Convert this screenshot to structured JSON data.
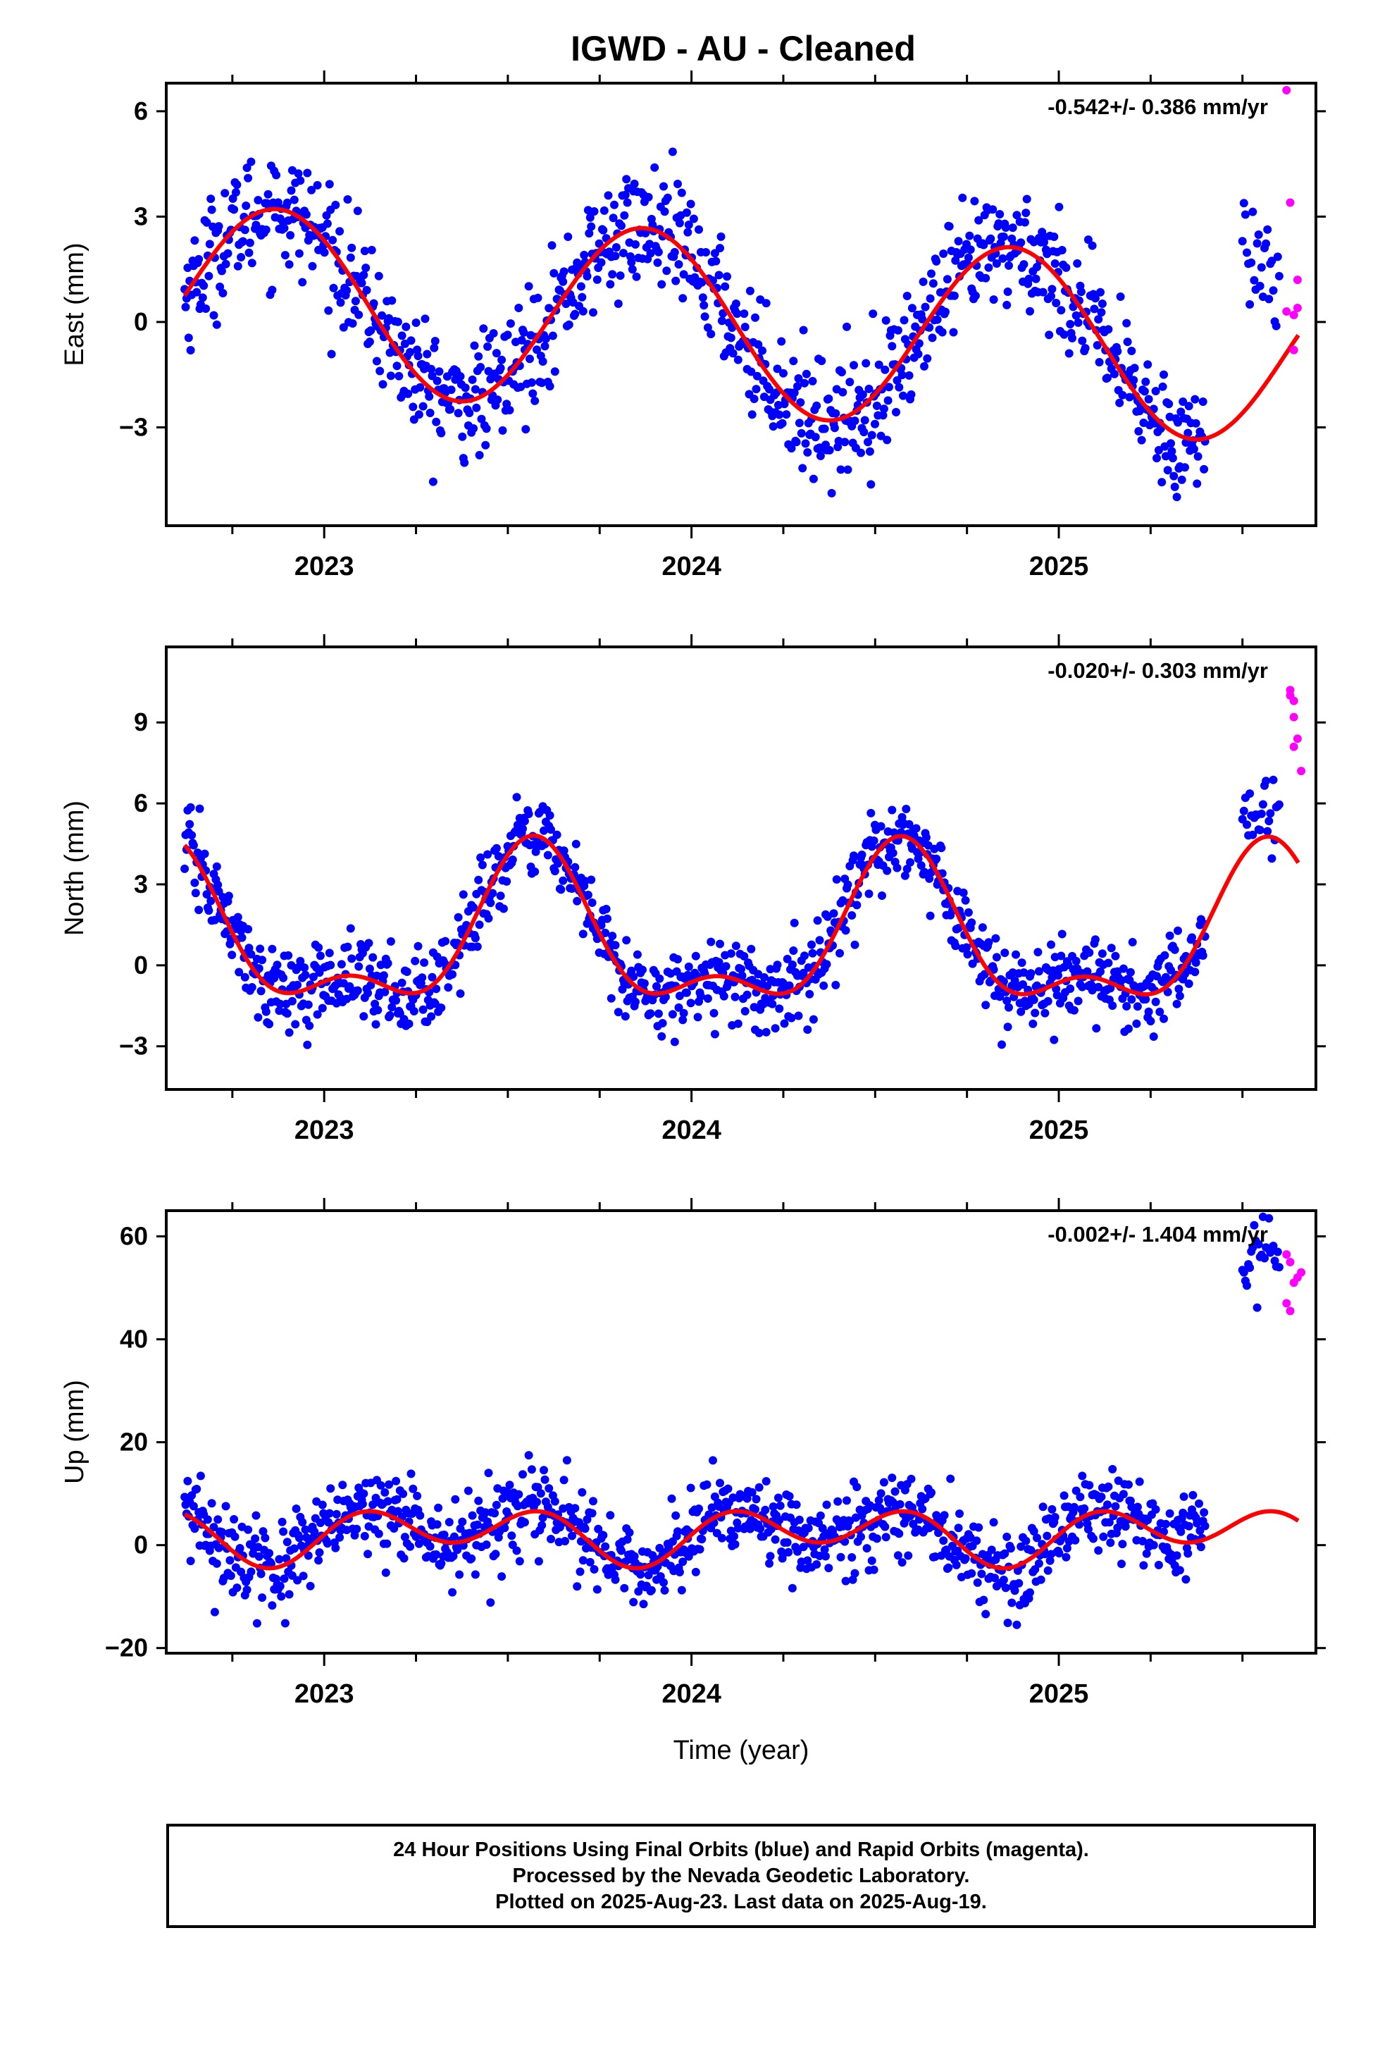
{
  "title": "IGWD  - AU - Cleaned",
  "colors": {
    "final": "#0000ff",
    "rapid": "#ff00ff",
    "model": "#ff0000",
    "axis": "#000000"
  },
  "footer": {
    "line1": "24 Hour Positions Using Final Orbits (blue) and Rapid Orbits (magenta).",
    "line2": "Processed by the Nevada Geodetic Laboratory.",
    "line3": "Plotted on 2025-Aug-23. Last data on 2025-Aug-19."
  },
  "chart_data": [
    {
      "type": "scatter",
      "panel": "east",
      "ylabel": "East (mm)",
      "xlabel": "",
      "rate": "-0.542+/- 0.386 mm/yr",
      "xlim": [
        2022.57,
        2025.7
      ],
      "ylim": [
        -5.8,
        6.8
      ],
      "yticks": [
        -3,
        0,
        3,
        6
      ],
      "xticks": [
        "2023",
        "2024",
        "2025"
      ],
      "xtick_values": [
        2023,
        2024,
        2025
      ],
      "model": {
        "offset": 0.0,
        "trend": -0.542,
        "annual": [
          2.6,
          2022.87
        ],
        "semiannual": [
          0.0,
          2023.0
        ]
      },
      "noise": 0.85,
      "segments": [
        [
          2022.62,
          2025.4
        ],
        [
          2025.5,
          2025.6
        ]
      ],
      "final_offset": [
        [
          2025.5,
          2025.6,
          1.9
        ]
      ],
      "rapid": [
        [
          2025.62,
          6.6
        ],
        [
          2025.63,
          3.4
        ],
        [
          2025.62,
          0.3
        ],
        [
          2025.64,
          0.2
        ],
        [
          2025.64,
          -0.8
        ],
        [
          2025.65,
          1.2
        ],
        [
          2025.65,
          0.4
        ]
      ]
    },
    {
      "type": "scatter",
      "panel": "north",
      "ylabel": "North (mm)",
      "xlabel": "",
      "rate": "-0.020+/- 0.303 mm/yr",
      "xlim": [
        2022.57,
        2025.7
      ],
      "ylim": [
        -4.6,
        11.8
      ],
      "yticks": [
        -3,
        0,
        3,
        6,
        9
      ],
      "xticks": [
        "2023",
        "2024",
        "2025"
      ],
      "xtick_values": [
        2023,
        2024,
        2025
      ],
      "model": {
        "offset": 0.9,
        "trend": -0.02,
        "annual": [
          2.6,
          2023.57
        ],
        "semiannual": [
          1.3,
          2023.57
        ]
      },
      "noise": 0.75,
      "segments": [
        [
          2022.62,
          2025.4
        ],
        [
          2025.5,
          2025.6
        ]
      ],
      "final_offset": [
        [
          2025.5,
          2025.6,
          5.6
        ]
      ],
      "rapid": [
        [
          2025.63,
          10.0
        ],
        [
          2025.64,
          9.8
        ],
        [
          2025.64,
          9.2
        ],
        [
          2025.65,
          8.4
        ],
        [
          2025.64,
          8.1
        ],
        [
          2025.66,
          7.2
        ],
        [
          2025.63,
          10.2
        ]
      ]
    },
    {
      "type": "scatter",
      "panel": "up",
      "ylabel": "Up (mm)",
      "xlabel": "Time (year)",
      "rate": "-0.002+/- 1.404 mm/yr",
      "xlim": [
        2022.57,
        2025.7
      ],
      "ylim": [
        -21,
        65
      ],
      "yticks": [
        -20,
        0,
        20,
        40,
        60
      ],
      "xticks": [
        "2023",
        "2024",
        "2025"
      ],
      "xtick_values": [
        2023,
        2024,
        2025
      ],
      "model": {
        "offset": 2.2,
        "trend": -0.002,
        "annual": [
          2.5,
          2023.35
        ],
        "semiannual": [
          4.2,
          2023.6
        ]
      },
      "noise": 4.2,
      "segments": [
        [
          2022.62,
          2025.4
        ],
        [
          2025.5,
          2025.6
        ]
      ],
      "final_offset": [
        [
          2025.5,
          2025.6,
          55.0
        ]
      ],
      "rapid": [
        [
          2025.62,
          56.5
        ],
        [
          2025.63,
          55.0
        ],
        [
          2025.64,
          51.0
        ],
        [
          2025.65,
          52.0
        ],
        [
          2025.66,
          53.0
        ],
        [
          2025.62,
          47.0
        ],
        [
          2025.63,
          45.5
        ]
      ]
    }
  ]
}
